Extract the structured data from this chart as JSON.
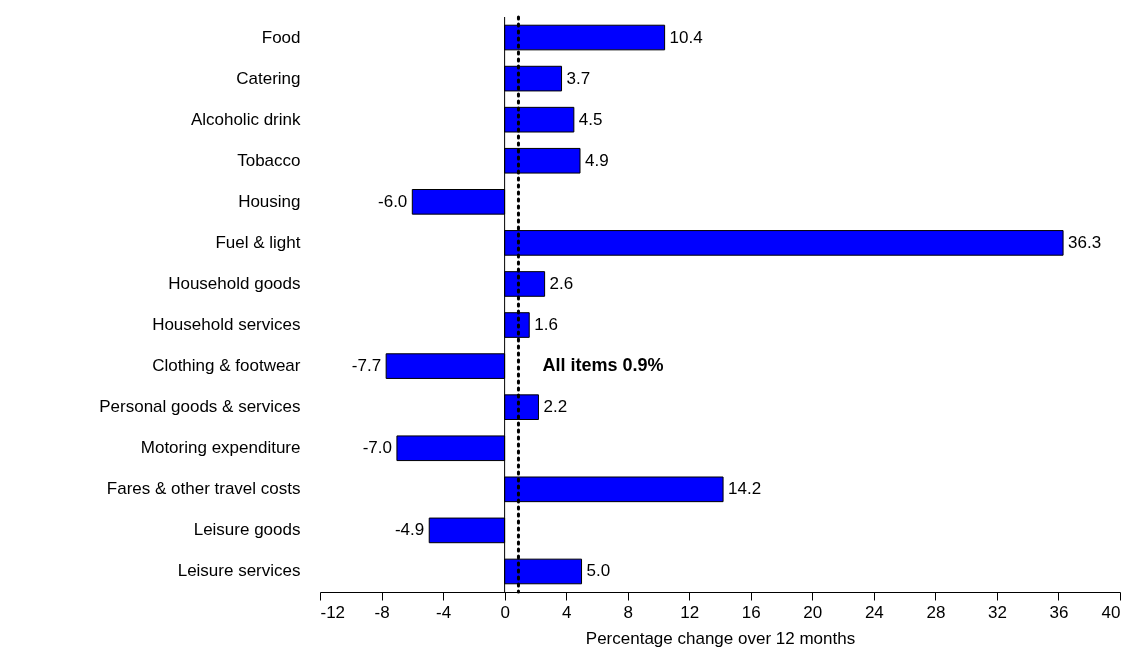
{
  "chart_data": {
    "type": "bar",
    "orientation": "horizontal",
    "xlabel": "Percentage change over 12 months",
    "categories": [
      "Food",
      "Catering",
      "Alcoholic drink",
      "Tobacco",
      "Housing",
      "Fuel & light",
      "Household goods",
      "Household services",
      "Clothing & footwear",
      "Personal goods & services",
      "Motoring expenditure",
      "Fares & other travel costs",
      "Leisure goods",
      "Leisure services"
    ],
    "values": [
      10.4,
      3.7,
      4.5,
      4.9,
      -6.0,
      36.3,
      2.6,
      1.6,
      -7.7,
      2.2,
      -7.0,
      14.2,
      -4.9,
      5.0
    ],
    "value_labels": [
      "10.4",
      "3.7",
      "4.5",
      "4.9",
      "-6.0",
      "36.3",
      "2.6",
      "1.6",
      "-7.7",
      "2.2",
      "-7.0",
      "14.2",
      "-4.9",
      "5.0"
    ],
    "color": "#0000ff",
    "xlim": [
      -12,
      40
    ],
    "xticks": [
      -12,
      -8,
      -4,
      0,
      4,
      8,
      12,
      16,
      20,
      24,
      28,
      32,
      36,
      40
    ],
    "ref_lines": [
      {
        "axis": "x",
        "value": 0.9,
        "line_style": "dotted",
        "color": "#000000"
      }
    ],
    "annotations": [
      {
        "text": "All items 0.9%",
        "x": 0.9,
        "y": "Clothing & footwear"
      }
    ],
    "line_style": "solid"
  }
}
